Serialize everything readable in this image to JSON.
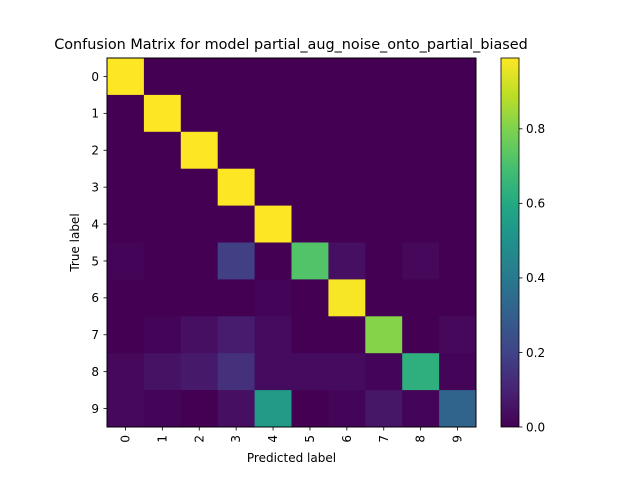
{
  "chart_data": {
    "type": "heatmap",
    "title": "Confusion Matrix for model partial_aug_noise_onto_partial_biased",
    "xlabel": "Predicted label",
    "ylabel": "True label",
    "x_categories": [
      "0",
      "1",
      "2",
      "3",
      "4",
      "5",
      "6",
      "7",
      "8",
      "9"
    ],
    "y_categories": [
      "0",
      "1",
      "2",
      "3",
      "4",
      "5",
      "6",
      "7",
      "8",
      "9"
    ],
    "colormap": "viridis",
    "vmin": 0.0,
    "vmax": 0.99,
    "colorbar_ticks": [
      "0.0",
      "0.2",
      "0.4",
      "0.6",
      "0.8"
    ],
    "colorbar_tick_values": [
      0.0,
      0.2,
      0.4,
      0.6,
      0.8
    ],
    "values": [
      [
        0.99,
        0.0,
        0.0,
        0.0,
        0.0,
        0.0,
        0.0,
        0.0,
        0.0,
        0.0
      ],
      [
        0.0,
        0.99,
        0.0,
        0.0,
        0.0,
        0.0,
        0.0,
        0.0,
        0.0,
        0.0
      ],
      [
        0.0,
        0.0,
        0.99,
        0.0,
        0.0,
        0.0,
        0.0,
        0.0,
        0.0,
        0.0
      ],
      [
        0.0,
        0.0,
        0.0,
        0.99,
        0.0,
        0.0,
        0.0,
        0.0,
        0.0,
        0.0
      ],
      [
        0.0,
        0.0,
        0.0,
        0.0,
        0.99,
        0.0,
        0.0,
        0.0,
        0.0,
        0.0
      ],
      [
        0.01,
        0.0,
        0.0,
        0.19,
        0.0,
        0.72,
        0.04,
        0.0,
        0.02,
        0.0
      ],
      [
        0.0,
        0.0,
        0.0,
        0.0,
        0.01,
        0.0,
        0.98,
        0.0,
        0.0,
        0.0
      ],
      [
        0.0,
        0.01,
        0.04,
        0.08,
        0.03,
        0.0,
        0.0,
        0.81,
        0.0,
        0.02
      ],
      [
        0.02,
        0.05,
        0.07,
        0.14,
        0.03,
        0.03,
        0.03,
        0.01,
        0.63,
        0.01
      ],
      [
        0.02,
        0.01,
        0.0,
        0.04,
        0.54,
        0.0,
        0.01,
        0.06,
        0.01,
        0.32
      ]
    ]
  }
}
